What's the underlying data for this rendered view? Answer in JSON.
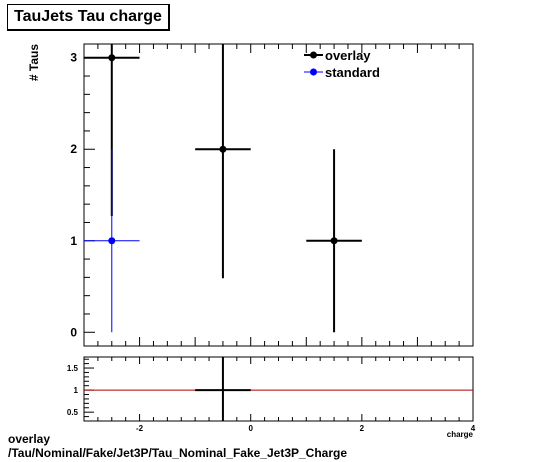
{
  "chart_data": [
    {
      "type": "scatter",
      "title": "TauJets Tau charge",
      "ylabel": "# Taus",
      "xlabel": "charge",
      "xlim": [
        -3,
        4
      ],
      "ylim": [
        -0.15,
        3.15
      ],
      "yticks": [
        0,
        1,
        2,
        3
      ],
      "legend": {
        "placement": "top-right",
        "entries": [
          "overlay",
          "standard"
        ]
      },
      "grid": false,
      "series": [
        {
          "name": "overlay",
          "color": "#000000",
          "points": [
            {
              "x": -2.5,
              "xerr": 0.5,
              "y": 3,
              "yerr": 1.73
            },
            {
              "x": -0.5,
              "xerr": 0.5,
              "y": 2,
              "yerr": 1.41
            },
            {
              "x": 1.5,
              "xerr": 0.5,
              "y": 1,
              "yerr": 1.0
            }
          ]
        },
        {
          "name": "standard",
          "color": "#0000ff",
          "points": [
            {
              "x": -2.5,
              "xerr": 0.5,
              "y": 1,
              "yerr": 1.0
            }
          ]
        }
      ]
    },
    {
      "type": "scatter",
      "title": "",
      "xlabel": "charge",
      "xlim": [
        -3,
        4
      ],
      "ylim": [
        0.3,
        1.75
      ],
      "xticks": [
        -2,
        0,
        2,
        4
      ],
      "yticks": [
        0.5,
        1,
        1.5
      ],
      "reference_line": {
        "y": 1,
        "color": "#aa0000"
      },
      "grid": false,
      "series": [
        {
          "name": "",
          "color": "#000000",
          "points": [
            {
              "x": -0.5,
              "xerr": 0.5,
              "y": 1.0,
              "yerr": 2.0
            }
          ]
        }
      ]
    }
  ],
  "footer": {
    "line1": "overlay",
    "line2": "/Tau/Nominal/Fake/Jet3P/Tau_Nominal_Fake_Jet3P_Charge"
  }
}
